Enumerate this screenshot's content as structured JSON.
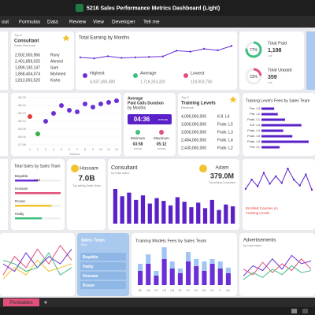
{
  "window": {
    "title": "5216 Sales Performance Metrics Dashboard (Light)"
  },
  "menu": [
    "out",
    "Formulas",
    "Data",
    "Review",
    "View",
    "Developer",
    "Tell me"
  ],
  "consultants": {
    "badge": "Top 5",
    "title": "Consultant",
    "subtitle": "Sales Revenue",
    "revenues": [
      "2,502,003,966",
      "2,401,859,025",
      "1,899,130,147",
      "1,868,404,074",
      "1,813,003,520"
    ],
    "names": [
      "Rony",
      "Ahmed",
      "Sam",
      "Mohmed",
      "Kisho"
    ]
  },
  "earning": {
    "title": "Total Earning by Months",
    "values": [
      150,
      130,
      175,
      140,
      150,
      160,
      170,
      290,
      270,
      330,
      300,
      390
    ],
    "stats": [
      {
        "label": "Highest",
        "value": "4,937,006,380"
      },
      {
        "label": "Average",
        "value": "1,716,253,320"
      },
      {
        "label": "Lowest",
        "value": "118,003,740"
      }
    ]
  },
  "payment": {
    "paid": {
      "percent": {
        "value": 77,
        "label": "77%"
      },
      "label": "Total Paid",
      "value": "1,198",
      "unit": "Lot"
    },
    "unpaid": {
      "percent": {
        "value": 23,
        "label": "23%"
      },
      "label": "Total Unpaid",
      "value": "359",
      "unit": "Lot"
    }
  },
  "calls": {
    "yticks": [
      {
        "value": 509,
        "label": "08:29"
      },
      {
        "value": 504,
        "label": "08:24"
      },
      {
        "value": 499,
        "label": "08:19"
      },
      {
        "value": 494,
        "label": "08:14"
      },
      {
        "value": 489,
        "label": "08:09"
      },
      {
        "value": 484,
        "label": "08:04"
      },
      {
        "value": 479,
        "label": "07:59"
      }
    ],
    "xticks": [
      1,
      2,
      3,
      4,
      5,
      6,
      7,
      8,
      9,
      10,
      11,
      12
    ],
    "x_label": "Months",
    "values": [
      497,
      486,
      494,
      499,
      504,
      501,
      500,
      505,
      503,
      505,
      506,
      507
    ],
    "colors": [
      "#e23b3b",
      "#2fb344",
      "#6a2fd6",
      "#6a2fd6",
      "#6a2fd6",
      "#6a2fd6",
      "#6a2fd6",
      "#6a2fd6",
      "#6a2fd6",
      "#6a2fd6",
      "#6a2fd6",
      "#6a2fd6"
    ]
  },
  "duration": {
    "title": [
      "Average",
      "Paid Calls Duration",
      "by Months"
    ],
    "value": "04:36",
    "unit": "mm:ss",
    "minimum": {
      "label": "Minimum",
      "value": "03:58",
      "unit": "mm:ss"
    },
    "maximum": {
      "label": "Maximum",
      "value": "05:12",
      "unit": "mm:ss"
    }
  },
  "levels": {
    "badge": "Top 5",
    "title": "Training Levels",
    "subtitle": "Revenue",
    "revenues": [
      "4,089,000,000",
      "3,800,000,000",
      "3,800,000,000",
      "2,484,000,000",
      "2,430,000,000"
    ],
    "names": [
      "KJI. L4",
      "Fndn. L5",
      "Fndn. L3",
      "Fndn. L4",
      "Fndn. L2"
    ]
  },
  "level_fees": {
    "title": "Training Level's Fees by Sales Team",
    "categories": [
      "Pre. L3",
      "Pre. L2",
      "Fndn. L1",
      "KJI. L4",
      "Fndn. L4",
      "Fndn. L5",
      "Fndn. L3",
      "Pre. L1"
    ],
    "values": [
      14,
      18,
      26,
      44,
      24,
      34,
      52,
      20
    ]
  },
  "team_sales": {
    "title": "Total Sales by Sales Team",
    "categories": [
      "Bayabla",
      "Hossam",
      "Rovan",
      "Haidy"
    ],
    "values": [
      3.5,
      7.0,
      5.6,
      4.1
    ],
    "value_labels": [
      "3.5B",
      null,
      null,
      null
    ],
    "colors": [
      "#6a2fd6",
      "#e0507a",
      "#f2c230",
      "#3fbf7f"
    ]
  },
  "top_team": {
    "name": "Hossam",
    "value": "7.0B",
    "caption": "Top selling Sales Team"
  },
  "consultant_sales": {
    "title": "Consultant",
    "subtitle": "by total sales",
    "values": [
      380,
      300,
      340,
      260,
      310,
      220,
      280,
      250,
      200,
      290,
      240,
      180,
      230,
      170,
      260,
      150,
      210,
      190
    ]
  },
  "top_consultant": {
    "name": "Adam",
    "value": "379.0M",
    "caption": "Top selling Consultant"
  },
  "enrolled": {
    "values": [
      30,
      52,
      36,
      68,
      42,
      60,
      44,
      78,
      52,
      38,
      64,
      28
    ],
    "annotation": [
      "Enrolled Courses on",
      "Training Levels"
    ]
  },
  "team_trend": {
    "series": [
      {
        "color": "#e0507a",
        "values": [
          20,
          45,
          30,
          55,
          35,
          60,
          40
        ]
      },
      {
        "color": "#6a2fd6",
        "values": [
          35,
          25,
          50,
          30,
          45,
          35,
          55
        ]
      },
      {
        "color": "#f2c230",
        "values": [
          15,
          30,
          20,
          40,
          25,
          30,
          35
        ]
      },
      {
        "color": "#3fbf7f",
        "values": [
          40,
          35,
          25,
          30,
          50,
          20,
          30
        ]
      }
    ]
  },
  "slicer": {
    "title": "Sales Team",
    "subtitle": "Row",
    "items": [
      "Bayabla",
      "Haidy",
      "Hossam",
      "Rovan"
    ]
  },
  "model_fees": {
    "title": "Training Models Fees by Sales Team",
    "categories": [
      "BE",
      "CM",
      "CP",
      "CR",
      "DB",
      "DF",
      "DT",
      "EC",
      "ED",
      "FA",
      "IT",
      "MK"
    ],
    "series": [
      {
        "color": "#6a2fd6",
        "values": [
          30,
          45,
          20,
          55,
          35,
          25,
          50,
          40,
          30,
          45,
          35,
          25
        ]
      },
      {
        "color": "#9fc5f0",
        "values": [
          15,
          20,
          10,
          25,
          15,
          10,
          20,
          15,
          20,
          10,
          15,
          12
        ]
      }
    ]
  },
  "ads": {
    "title": "Advertisements",
    "subtitle": "by total sales",
    "series": [
      {
        "color": "#6a2fd6",
        "values": [
          20,
          35,
          28,
          45,
          30,
          50,
          38,
          42
        ]
      },
      {
        "color": "#e0507a",
        "values": [
          30,
          22,
          40,
          25,
          38,
          28,
          45,
          30
        ]
      },
      {
        "color": "#3fbf7f",
        "values": [
          15,
          25,
          18,
          30,
          22,
          35,
          25,
          28
        ]
      }
    ]
  },
  "sheet": {
    "tab": "Pivottables",
    "add": "+"
  }
}
